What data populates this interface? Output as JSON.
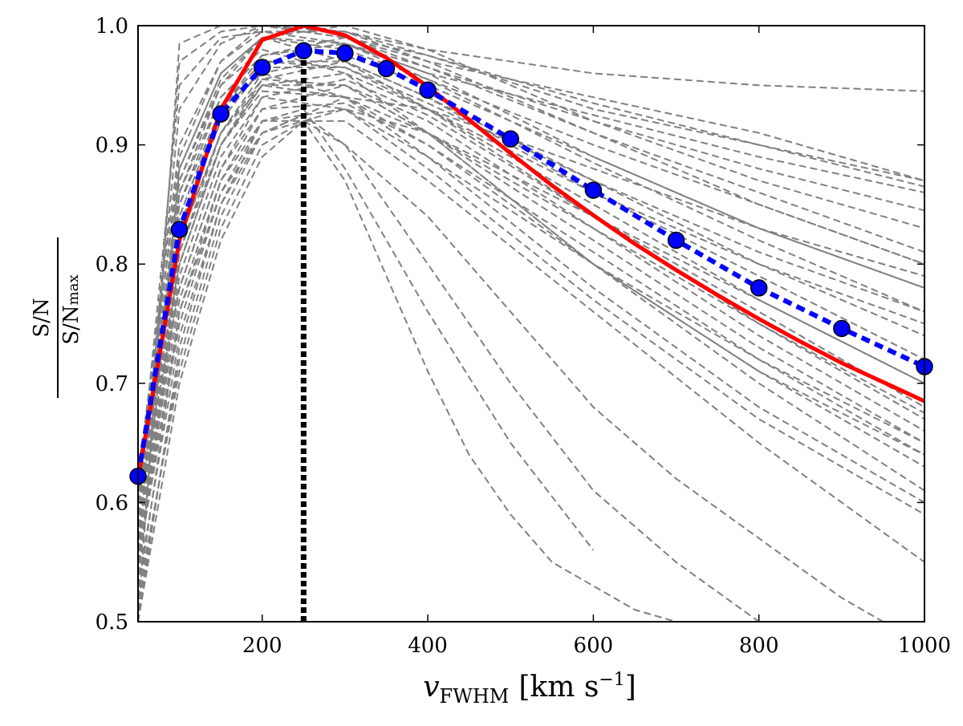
{
  "chart_data": {
    "type": "line",
    "title": "",
    "xlabel": {
      "symbol": "v",
      "subscript": "FWHM",
      "unit": "[km s",
      "unit_exp": "−1",
      "unit_close": "]"
    },
    "ylabel": {
      "numerator": "S/N",
      "denominator": "S/N",
      "denominator_subscript": "max"
    },
    "xlim": [
      50,
      1000
    ],
    "ylim": [
      0.5,
      1.0
    ],
    "x_ticks": [
      200,
      400,
      600,
      800,
      1000
    ],
    "x_tick_labels": [
      "200",
      "400",
      "600",
      "800",
      "1000"
    ],
    "y_ticks": [
      0.5,
      0.6,
      0.7,
      0.8,
      0.9,
      1.0
    ],
    "y_tick_labels": [
      "0.5",
      "0.6",
      "0.7",
      "0.8",
      "0.9",
      "1.0"
    ],
    "grid": false,
    "legend": "none",
    "vertical_line": {
      "x": 250,
      "style": "dotted",
      "color": "#000000"
    },
    "colors": {
      "red_curve": "#ff0000",
      "blue_curve": "#0000ff",
      "background_curves": "#808080",
      "marker_edge": "#000000"
    },
    "series": [
      {
        "style": "solid",
        "color": "#ff0000",
        "x": [
          50,
          100,
          150,
          200,
          250,
          300,
          350,
          400,
          450,
          500,
          550,
          600,
          650,
          700,
          750,
          800,
          850,
          900,
          950,
          1000
        ],
        "y": [
          0.62,
          0.82,
          0.93,
          0.988,
          1.0,
          0.992,
          0.973,
          0.949,
          0.921,
          0.893,
          0.866,
          0.841,
          0.817,
          0.795,
          0.774,
          0.754,
          0.735,
          0.717,
          0.701,
          0.685
        ]
      },
      {
        "style": "dotted-markers",
        "color": "#0000ff",
        "x": [
          50,
          100,
          150,
          200,
          250,
          300,
          350,
          400,
          500,
          600,
          700,
          800,
          900,
          1000
        ],
        "y": [
          0.622,
          0.829,
          0.926,
          0.965,
          0.979,
          0.977,
          0.964,
          0.946,
          0.905,
          0.862,
          0.82,
          0.78,
          0.746,
          0.714
        ]
      }
    ],
    "background_series": [
      {
        "x": [
          50,
          100,
          150,
          200,
          300,
          400,
          600,
          800,
          1000
        ],
        "y": [
          0.5,
          0.985,
          1.0,
          1.0,
          0.99,
          0.97,
          0.94,
          0.91,
          0.87
        ]
      },
      {
        "x": [
          50,
          100,
          150,
          200,
          300,
          400,
          600,
          800,
          1000
        ],
        "y": [
          0.55,
          0.97,
          0.995,
          1.0,
          0.995,
          0.98,
          0.96,
          0.95,
          0.945
        ]
      },
      {
        "x": [
          50,
          100,
          150,
          200,
          300,
          400,
          600,
          800,
          1000
        ],
        "y": [
          0.6,
          0.95,
          0.99,
          0.995,
          0.985,
          0.96,
          0.925,
          0.89,
          0.86
        ]
      },
      {
        "x": [
          50,
          100,
          150,
          200,
          300,
          400,
          600,
          800,
          1000
        ],
        "y": [
          0.58,
          0.93,
          0.985,
          1.0,
          0.99,
          0.965,
          0.92,
          0.88,
          0.845
        ]
      },
      {
        "x": [
          50,
          100,
          150,
          200,
          300,
          400,
          600,
          800,
          1000
        ],
        "y": [
          0.62,
          0.9,
          0.97,
          0.995,
          0.995,
          0.975,
          0.935,
          0.9,
          0.865
        ]
      },
      {
        "x": [
          50,
          100,
          150,
          200,
          300,
          400,
          600,
          800,
          1000
        ],
        "y": [
          0.53,
          0.88,
          0.96,
          0.99,
          0.98,
          0.955,
          0.9,
          0.85,
          0.8
        ]
      },
      {
        "x": [
          50,
          100,
          150,
          200,
          300,
          400,
          600,
          800,
          1000
        ],
        "y": [
          0.6,
          0.86,
          0.94,
          0.975,
          0.985,
          0.965,
          0.91,
          0.86,
          0.81
        ]
      },
      {
        "x": [
          50,
          100,
          150,
          200,
          300,
          400,
          600,
          800,
          1000
        ],
        "y": [
          0.57,
          0.84,
          0.93,
          0.97,
          0.97,
          0.94,
          0.87,
          0.8,
          0.74
        ]
      },
      {
        "x": [
          50,
          100,
          150,
          200,
          300,
          400,
          600,
          800,
          1000
        ],
        "y": [
          0.63,
          0.82,
          0.91,
          0.96,
          0.975,
          0.95,
          0.89,
          0.83,
          0.78
        ]
      },
      {
        "x": [
          50,
          100,
          150,
          200,
          300,
          400,
          600,
          800,
          1000
        ],
        "y": [
          0.55,
          0.8,
          0.9,
          0.95,
          0.96,
          0.93,
          0.85,
          0.77,
          0.7
        ]
      },
      {
        "x": [
          50,
          100,
          150,
          200,
          300,
          400,
          600,
          800,
          1000
        ],
        "y": [
          0.6,
          0.78,
          0.88,
          0.94,
          0.955,
          0.925,
          0.84,
          0.76,
          0.68
        ]
      },
      {
        "x": [
          50,
          100,
          150,
          200,
          300,
          400,
          600,
          800,
          1000
        ],
        "y": [
          0.52,
          0.76,
          0.87,
          0.93,
          0.95,
          0.92,
          0.83,
          0.74,
          0.66
        ]
      },
      {
        "x": [
          50,
          100,
          150,
          200,
          300,
          400,
          600,
          800,
          1000
        ],
        "y": [
          0.59,
          0.83,
          0.92,
          0.965,
          0.965,
          0.93,
          0.84,
          0.75,
          0.675
        ]
      },
      {
        "x": [
          50,
          100,
          150,
          200,
          300,
          400,
          600,
          800,
          1000
        ],
        "y": [
          0.56,
          0.81,
          0.9,
          0.945,
          0.94,
          0.9,
          0.8,
          0.71,
          0.64
        ]
      },
      {
        "x": [
          50,
          100,
          150,
          200,
          300,
          400,
          600,
          800,
          1000
        ],
        "y": [
          0.61,
          0.85,
          0.93,
          0.96,
          0.94,
          0.89,
          0.78,
          0.68,
          0.6
        ]
      },
      {
        "x": [
          50,
          100,
          150,
          200,
          300,
          400,
          600,
          800,
          1000
        ],
        "y": [
          0.54,
          0.79,
          0.89,
          0.94,
          0.93,
          0.88,
          0.77,
          0.67,
          0.59
        ]
      },
      {
        "x": [
          50,
          100,
          150,
          200,
          300,
          400,
          600,
          800,
          1000
        ],
        "y": [
          0.58,
          0.8,
          0.9,
          0.955,
          0.97,
          0.94,
          0.86,
          0.79,
          0.72
        ]
      },
      {
        "x": [
          50,
          100,
          150,
          200,
          300,
          400,
          600,
          800,
          1000
        ],
        "y": [
          0.6,
          0.87,
          0.95,
          0.98,
          0.96,
          0.91,
          0.8,
          0.72,
          0.65
        ]
      },
      {
        "x": [
          50,
          100,
          150,
          200,
          300,
          400,
          600,
          800,
          1000
        ],
        "y": [
          0.55,
          0.75,
          0.86,
          0.92,
          0.93,
          0.89,
          0.8,
          0.71,
          0.63
        ]
      },
      {
        "x": [
          50,
          100,
          150,
          200,
          300,
          400,
          600,
          800,
          1000
        ],
        "y": [
          0.62,
          0.88,
          0.96,
          0.99,
          0.97,
          0.93,
          0.86,
          0.8,
          0.75
        ]
      },
      {
        "x": [
          50,
          100,
          150,
          200,
          300,
          400,
          600,
          800,
          1000
        ],
        "y": [
          0.57,
          0.82,
          0.91,
          0.955,
          0.95,
          0.91,
          0.82,
          0.73,
          0.65
        ]
      },
      {
        "x": [
          50,
          100,
          150,
          200,
          300,
          400,
          600,
          800,
          1000
        ],
        "y": [
          0.53,
          0.74,
          0.85,
          0.91,
          0.93,
          0.91,
          0.84,
          0.77,
          0.7
        ]
      },
      {
        "x": [
          50,
          100,
          150,
          200,
          300,
          400,
          600,
          800,
          1000
        ],
        "y": [
          0.59,
          0.84,
          0.93,
          0.975,
          0.99,
          0.975,
          0.93,
          0.9,
          0.87
        ]
      },
      {
        "x": [
          50,
          100,
          150,
          200,
          300,
          400,
          600,
          800,
          1000
        ],
        "y": [
          0.56,
          0.86,
          0.95,
          0.99,
          1.0,
          0.98,
          0.92,
          0.87,
          0.83
        ]
      },
      {
        "x": [
          50,
          100,
          150,
          200,
          300,
          400,
          600,
          800,
          1000
        ],
        "y": [
          0.6,
          0.89,
          0.97,
          1.0,
          0.995,
          0.97,
          0.91,
          0.85,
          0.8
        ]
      },
      {
        "x": [
          50,
          100,
          150,
          200,
          300,
          400,
          600,
          800,
          1000
        ],
        "y": [
          0.51,
          0.72,
          0.84,
          0.91,
          0.94,
          0.93,
          0.88,
          0.83,
          0.79
        ]
      },
      {
        "x": [
          50,
          100,
          150,
          200,
          300,
          400,
          600,
          800,
          1000
        ],
        "y": [
          0.58,
          0.83,
          0.93,
          0.97,
          0.965,
          0.935,
          0.87,
          0.81,
          0.76
        ]
      },
      {
        "x": [
          50,
          100,
          150,
          200,
          300,
          400,
          600,
          800,
          1000
        ],
        "y": [
          0.54,
          0.81,
          0.91,
          0.95,
          0.94,
          0.91,
          0.83,
          0.75,
          0.67
        ]
      },
      {
        "x": [
          50,
          100,
          150,
          200,
          300,
          400,
          600,
          800,
          1000
        ],
        "y": [
          0.6,
          0.85,
          0.94,
          0.975,
          0.985,
          0.96,
          0.89,
          0.83,
          0.78
        ]
      },
      {
        "x": [
          50,
          100,
          150,
          200,
          250,
          300,
          400,
          500,
          600,
          700,
          800
        ],
        "y": [
          0.55,
          0.76,
          0.86,
          0.91,
          0.925,
          0.9,
          0.8,
          0.7,
          0.61,
          0.55,
          0.5
        ]
      },
      {
        "x": [
          50,
          100,
          150,
          200,
          250,
          300,
          400,
          500,
          600,
          700,
          800,
          900,
          950
        ],
        "y": [
          0.5,
          0.7,
          0.82,
          0.89,
          0.92,
          0.9,
          0.84,
          0.76,
          0.68,
          0.62,
          0.57,
          0.52,
          0.5
        ]
      },
      {
        "x": [
          50,
          100,
          150,
          200,
          250,
          300,
          350,
          400,
          450,
          500,
          550,
          600,
          650,
          700
        ],
        "y": [
          0.52,
          0.71,
          0.83,
          0.9,
          0.92,
          0.87,
          0.79,
          0.71,
          0.64,
          0.59,
          0.55,
          0.53,
          0.51,
          0.5
        ]
      },
      {
        "x": [
          50,
          100,
          150,
          200,
          250,
          300,
          400,
          500,
          600
        ],
        "y": [
          0.5,
          0.73,
          0.85,
          0.92,
          0.93,
          0.88,
          0.76,
          0.65,
          0.56
        ]
      },
      {
        "x": [
          50,
          100,
          150,
          200,
          300,
          400,
          600,
          800,
          1000
        ],
        "y": [
          0.57,
          0.78,
          0.88,
          0.93,
          0.935,
          0.9,
          0.81,
          0.72,
          0.64
        ]
      },
      {
        "x": [
          50,
          100,
          150,
          200,
          300,
          400,
          600,
          800,
          1000
        ],
        "y": [
          0.61,
          0.8,
          0.9,
          0.95,
          0.95,
          0.91,
          0.8,
          0.7,
          0.61
        ]
      },
      {
        "x": [
          50,
          100,
          150,
          200,
          300,
          400,
          600,
          800,
          1000
        ],
        "y": [
          0.56,
          0.77,
          0.87,
          0.92,
          0.92,
          0.87,
          0.76,
          0.65,
          0.55
        ]
      },
      {
        "x": [
          50,
          100,
          150,
          200,
          300,
          400,
          600,
          800,
          1000
        ],
        "y": [
          0.59,
          0.87,
          0.955,
          0.99,
          0.985,
          0.955,
          0.885,
          0.82,
          0.76
        ]
      }
    ]
  }
}
